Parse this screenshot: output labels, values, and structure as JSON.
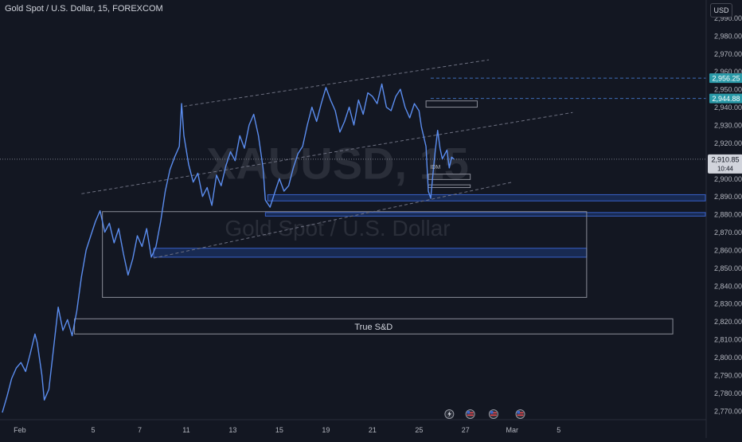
{
  "title": "Gold Spot / U.S. Dollar, 15, FOREXCOM",
  "currency": "USD",
  "watermark": {
    "symbol": "XAUUSD, 15",
    "name": "Gold Spot / U.S. Dollar"
  },
  "colors": {
    "background": "#131722",
    "candle": "#5b8def",
    "price_badge": "#2a9aa8",
    "last_badge": "#d1d4dc",
    "zone_fill": "#1e3a7a",
    "zone_border": "#3860c8",
    "outline": "#8a8d98",
    "trend": "#6d7080"
  },
  "chart_data": {
    "type": "line",
    "title": "Gold Spot / U.S. Dollar, 15, FOREXCOM",
    "ylim": [
      2765,
      3000
    ],
    "yticks": [
      2770,
      2780,
      2790,
      2800,
      2810,
      2820,
      2830,
      2840,
      2850,
      2860,
      2870,
      2880,
      2890,
      2900,
      2910,
      2920,
      2930,
      2940,
      2950,
      2960,
      2970,
      2980,
      2990
    ],
    "ytick_labels": [
      "2,770.00",
      "2,780.00",
      "2,790.00",
      "2,800.00",
      "2,810.00",
      "2,820.00",
      "2,830.00",
      "2,840.00",
      "2,850.00",
      "2,860.00",
      "2,870.00",
      "2,880.00",
      "2,890.00",
      "2,900.00",
      "2,910.00",
      "2,920.00",
      "2,930.00",
      "2,940.00",
      "2,950.00",
      "2,960.00",
      "2,970.00",
      "2,980.00",
      "2,990.00"
    ],
    "xticks": [
      {
        "t": 0.85,
        "label": "Feb"
      },
      {
        "t": 4.0,
        "label": "5"
      },
      {
        "t": 6.0,
        "label": "7"
      },
      {
        "t": 8.0,
        "label": "11"
      },
      {
        "t": 10.0,
        "label": "13"
      },
      {
        "t": 12.0,
        "label": "15"
      },
      {
        "t": 14.0,
        "label": "19"
      },
      {
        "t": 16.0,
        "label": "21"
      },
      {
        "t": 18.0,
        "label": "25"
      },
      {
        "t": 20.0,
        "label": "27"
      },
      {
        "t": 22.0,
        "label": "Mar"
      },
      {
        "t": 24.0,
        "label": "5"
      }
    ],
    "xlim": [
      0,
      30.3
    ],
    "price_path": [
      [
        0.1,
        2769
      ],
      [
        0.3,
        2778
      ],
      [
        0.5,
        2788
      ],
      [
        0.7,
        2794
      ],
      [
        0.9,
        2797
      ],
      [
        1.1,
        2792
      ],
      [
        1.3,
        2802
      ],
      [
        1.5,
        2813
      ],
      [
        1.6,
        2808
      ],
      [
        1.8,
        2790
      ],
      [
        1.9,
        2776
      ],
      [
        2.1,
        2782
      ],
      [
        2.3,
        2805
      ],
      [
        2.5,
        2828
      ],
      [
        2.7,
        2815
      ],
      [
        2.9,
        2821
      ],
      [
        3.1,
        2812
      ],
      [
        3.3,
        2826
      ],
      [
        3.5,
        2845
      ],
      [
        3.7,
        2860
      ],
      [
        3.9,
        2868
      ],
      [
        4.1,
        2876
      ],
      [
        4.3,
        2882
      ],
      [
        4.5,
        2870
      ],
      [
        4.7,
        2875
      ],
      [
        4.9,
        2864
      ],
      [
        5.1,
        2872
      ],
      [
        5.3,
        2858
      ],
      [
        5.5,
        2846
      ],
      [
        5.7,
        2855
      ],
      [
        5.9,
        2868
      ],
      [
        6.1,
        2862
      ],
      [
        6.3,
        2872
      ],
      [
        6.5,
        2856
      ],
      [
        6.7,
        2862
      ],
      [
        6.9,
        2876
      ],
      [
        7.1,
        2893
      ],
      [
        7.3,
        2905
      ],
      [
        7.5,
        2912
      ],
      [
        7.7,
        2918
      ],
      [
        7.8,
        2942
      ],
      [
        7.9,
        2924
      ],
      [
        8.1,
        2908
      ],
      [
        8.3,
        2898
      ],
      [
        8.5,
        2903
      ],
      [
        8.7,
        2890
      ],
      [
        8.9,
        2895
      ],
      [
        9.1,
        2885
      ],
      [
        9.3,
        2902
      ],
      [
        9.5,
        2896
      ],
      [
        9.7,
        2907
      ],
      [
        9.9,
        2915
      ],
      [
        10.1,
        2910
      ],
      [
        10.3,
        2924
      ],
      [
        10.5,
        2917
      ],
      [
        10.7,
        2930
      ],
      [
        10.9,
        2936
      ],
      [
        11.1,
        2924
      ],
      [
        11.3,
        2906
      ],
      [
        11.4,
        2888
      ],
      [
        11.6,
        2884
      ],
      [
        11.8,
        2892
      ],
      [
        12.0,
        2900
      ],
      [
        12.2,
        2893
      ],
      [
        12.4,
        2896
      ],
      [
        12.6,
        2906
      ],
      [
        12.8,
        2914
      ],
      [
        13.0,
        2918
      ],
      [
        13.2,
        2930
      ],
      [
        13.4,
        2940
      ],
      [
        13.6,
        2932
      ],
      [
        13.8,
        2942
      ],
      [
        14.0,
        2951
      ],
      [
        14.2,
        2944
      ],
      [
        14.4,
        2938
      ],
      [
        14.6,
        2926
      ],
      [
        14.8,
        2932
      ],
      [
        15.0,
        2940
      ],
      [
        15.2,
        2930
      ],
      [
        15.4,
        2944
      ],
      [
        15.6,
        2936
      ],
      [
        15.8,
        2948
      ],
      [
        16.0,
        2946
      ],
      [
        16.2,
        2942
      ],
      [
        16.4,
        2953
      ],
      [
        16.6,
        2940
      ],
      [
        16.8,
        2938
      ],
      [
        17.0,
        2946
      ],
      [
        17.2,
        2950
      ],
      [
        17.4,
        2940
      ],
      [
        17.6,
        2934
      ],
      [
        17.8,
        2942
      ],
      [
        18.0,
        2938
      ],
      [
        18.1,
        2929
      ],
      [
        18.3,
        2918
      ],
      [
        18.4,
        2893
      ],
      [
        18.5,
        2889
      ],
      [
        18.6,
        2903
      ],
      [
        18.7,
        2916
      ],
      [
        18.8,
        2927
      ],
      [
        18.9,
        2917
      ],
      [
        19.0,
        2911
      ],
      [
        19.2,
        2916
      ],
      [
        19.3,
        2906
      ],
      [
        19.4,
        2912
      ],
      [
        19.5,
        2910.85
      ]
    ],
    "last_price": 2910.85,
    "last_price_label": "2,910.85",
    "countdown_label": "10:44",
    "price_levels": [
      {
        "value": 2956.25,
        "label": "2,956.25"
      },
      {
        "value": 2944.88,
        "label": "2,944.88"
      }
    ],
    "demand_zones": [
      {
        "t0": 11.5,
        "t1": 30.3,
        "p0": 2887.5,
        "p1": 2891
      },
      {
        "t0": 11.4,
        "t1": 30.3,
        "p0": 2879,
        "p1": 2881
      },
      {
        "t0": 6.6,
        "t1": 25.2,
        "p0": 2856,
        "p1": 2861
      }
    ],
    "outline_boxes": [
      {
        "t0": 4.4,
        "t1": 25.2,
        "p0": 2833.5,
        "p1": 2881.5,
        "label": ""
      },
      {
        "t0": 3.2,
        "t1": 28.9,
        "p0": 2813,
        "p1": 2821.5,
        "label": "True S&D"
      },
      {
        "t0": 18.3,
        "t1": 20.5,
        "p0": 2940,
        "p1": 2943.5,
        "label": ""
      },
      {
        "t0": 18.4,
        "t1": 20.2,
        "p0": 2899.5,
        "p1": 2902.5,
        "label": ""
      },
      {
        "t0": 18.4,
        "t1": 20.2,
        "p0": 2895,
        "p1": 2896.5,
        "label": ""
      }
    ],
    "trend_lines": [
      {
        "t0": 7.9,
        "p0": 2940.5,
        "t1": 21.0,
        "p1": 2966.5
      },
      {
        "t0": 3.5,
        "p0": 2891.5,
        "t1": 24.6,
        "p1": 2937
      },
      {
        "t0": 6.6,
        "p0": 2855.5,
        "t1": 22.0,
        "p1": 2898
      }
    ],
    "annotation": {
      "t": 18.7,
      "p": 2905.5,
      "label": "IDM"
    },
    "event_icons": [
      {
        "t": 19.3,
        "name": "lightning-event-icon"
      },
      {
        "t": 20.2,
        "name": "us-flag-event-icon"
      },
      {
        "t": 21.2,
        "name": "us-flag-event-icon"
      },
      {
        "t": 22.35,
        "name": "us-flag-event-icon"
      }
    ]
  }
}
